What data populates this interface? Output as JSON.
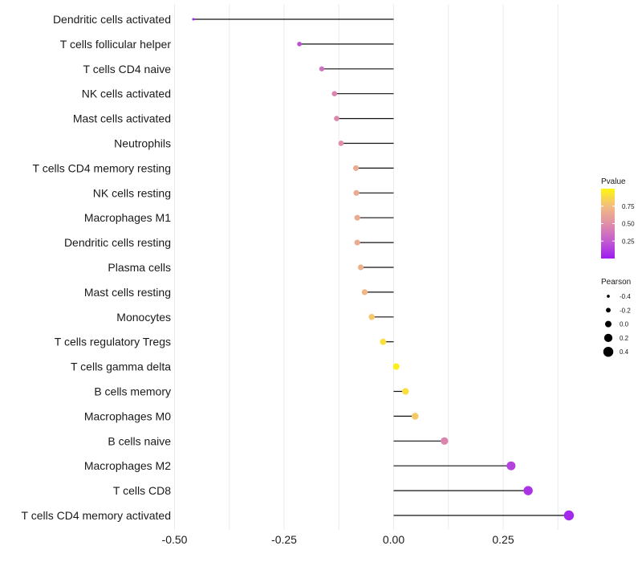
{
  "chart_data": {
    "type": "lollipop",
    "title": "",
    "xlabel": "",
    "ylabel": "",
    "xlim": [
      -0.5,
      0.4
    ],
    "x_ticks": [
      -0.5,
      -0.25,
      0.0,
      0.25
    ],
    "x_tick_labels": [
      "-0.50",
      "-0.25",
      "0.00",
      "0.25"
    ],
    "grid": true,
    "categories": [
      "Dendritic cells activated",
      "T cells follicular helper",
      "T cells CD4 naive",
      "NK cells activated",
      "Mast cells activated",
      "Neutrophils",
      "T cells CD4 memory resting",
      "NK cells resting",
      "Macrophages M1",
      "Dendritic cells resting",
      "Plasma cells",
      "Mast cells resting",
      "Monocytes",
      "T cells regulatory  Tregs ",
      "T cells gamma delta",
      "B cells memory",
      "Macrophages M0",
      "B cells naive",
      "Macrophages M2",
      "T cells CD8",
      "T cells CD4 memory activated"
    ],
    "pearson": [
      -0.457,
      -0.215,
      -0.164,
      -0.135,
      -0.13,
      -0.12,
      -0.086,
      -0.085,
      -0.083,
      -0.083,
      -0.075,
      -0.066,
      -0.05,
      -0.024,
      0.006,
      0.027,
      0.049,
      0.116,
      0.268,
      0.307,
      0.4
    ],
    "pvalue": [
      0.03,
      0.2,
      0.35,
      0.45,
      0.47,
      0.5,
      0.65,
      0.65,
      0.65,
      0.65,
      0.68,
      0.72,
      0.8,
      0.9,
      0.97,
      0.9,
      0.8,
      0.45,
      0.15,
      0.09,
      0.05
    ],
    "color_legend": {
      "title": "Pvalue",
      "range": [
        0,
        1
      ],
      "ticks": [
        0.25,
        0.5,
        0.75
      ],
      "tick_labels": [
        "0.25",
        "0.50",
        "0.75"
      ],
      "low_color": "#9d1cf0",
      "mid_color": "#e08fa8",
      "high_color": "#fff000",
      "placement": "right"
    },
    "size_legend": {
      "title": "Pearson",
      "values": [
        -0.4,
        -0.2,
        0.0,
        0.2,
        0.4
      ],
      "labels": [
        "-0.4",
        "-0.2",
        "0.0",
        "0.2",
        "0.4"
      ],
      "placement": "right"
    }
  }
}
